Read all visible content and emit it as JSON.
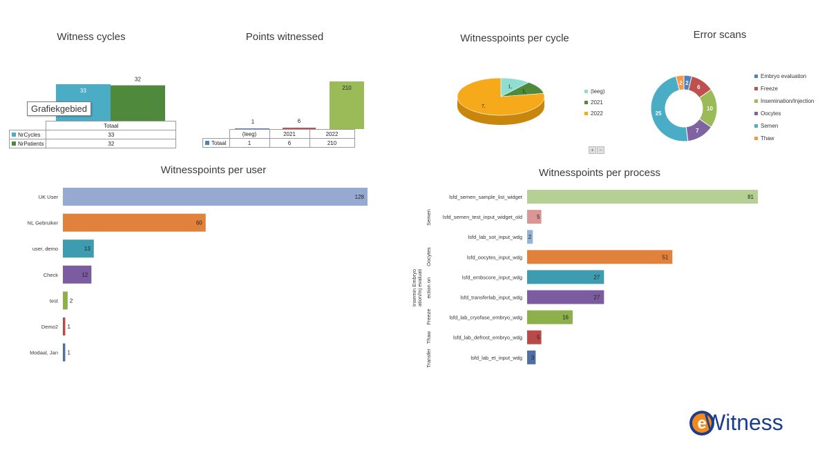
{
  "titles": {
    "cycles": "Witness cycles",
    "points": "Points witnessed",
    "per_cycle": "Witnesspoints per cycle",
    "error": "Error scans",
    "per_user": "Witnesspoints per user",
    "per_process": "Witnesspoints per process"
  },
  "tooltip": "Grafiekgebied",
  "cycles_table": {
    "header": "Totaal",
    "rows": [
      {
        "label": "NrCycles",
        "value": "33"
      },
      {
        "label": "NrPatients",
        "value": "32"
      }
    ]
  },
  "points_table": {
    "header": [
      "(leeg)",
      "2021",
      "2022"
    ],
    "row_label": "Totaal",
    "values": [
      "1",
      "6",
      "210"
    ]
  },
  "pie_legend": [
    "(leeg)",
    "2021",
    "2022"
  ],
  "donut_legend": [
    "Embryo evaluation",
    "Freeze",
    "Insemination/Injection",
    "Oocytes",
    "Semen",
    "Thaw"
  ],
  "zoom": {
    "plus": "+",
    "minus": "−"
  },
  "logo": {
    "letter": "e",
    "text": "Witness"
  },
  "chart_data": [
    {
      "type": "bar",
      "title": "Witness cycles",
      "categories": [
        "Totaal"
      ],
      "series": [
        {
          "name": "NrCycles",
          "values": [
            33
          ]
        },
        {
          "name": "NrPatients",
          "values": [
            32
          ]
        }
      ],
      "colors": [
        "#4bacc6",
        "#4f8a3c"
      ]
    },
    {
      "type": "bar",
      "title": "Points witnessed",
      "categories": [
        "(leeg)",
        "2021",
        "2022"
      ],
      "series": [
        {
          "name": "Totaal",
          "values": [
            1,
            6,
            210
          ]
        }
      ],
      "colors": [
        "#4f81bd",
        "#c0504d",
        "#9bbb59"
      ]
    },
    {
      "type": "pie",
      "title": "Witnesspoints per cycle",
      "categories": [
        "(leeg)",
        "2021",
        "2022"
      ],
      "values": [
        1,
        1,
        7
      ],
      "labels": [
        "1,",
        "1,",
        "7,"
      ],
      "colors": [
        "#8fded0",
        "#4f8a3c",
        "#f5a91b"
      ]
    },
    {
      "type": "pie",
      "title": "Error scans",
      "categories": [
        "Embryo evaluation",
        "Freeze",
        "Insemination/Injection",
        "Oocytes",
        "Semen",
        "Thaw"
      ],
      "values": [
        2,
        6,
        10,
        7,
        25,
        2
      ],
      "colors": [
        "#4f81bd",
        "#c0504d",
        "#9bbb59",
        "#8064a2",
        "#4bacc6",
        "#f79646"
      ]
    },
    {
      "type": "bar",
      "title": "Witnesspoints per user",
      "categories": [
        "UK User",
        "NL Gebruiker",
        "user, demo",
        "Check",
        "test",
        "Demo2",
        "Modaal, Jan"
      ],
      "values": [
        128,
        60,
        13,
        12,
        2,
        1,
        1
      ],
      "colors": [
        "#95a9d1",
        "#e0823c",
        "#3d9cb0",
        "#7b5ca0",
        "#8eb04b",
        "#b84a47",
        "#4f6ea3"
      ]
    },
    {
      "type": "bar",
      "title": "Witnesspoints per process",
      "groups": [
        "Semen",
        "Oocytes",
        "Insemin Embryo ation/Inj evaluati ection on",
        "Freeze",
        "Thaw",
        "Transfer"
      ],
      "categories": [
        "lsfd_semen_sample_list_widget",
        "lsfd_semen_test_input_widget_old",
        "lsfd_lab_sot_input_wdg",
        "lsfd_oocytes_input_wdg",
        "lsfd_embscore_input_wdg",
        "lsfd_transferlab_input_wdg",
        "lsfd_lab_cryofase_embryo_wdg",
        "lsfd_lab_defrost_embryo_wdg",
        "lsfd_lab_et_input_wdg"
      ],
      "values": [
        81,
        5,
        2,
        51,
        27,
        27,
        16,
        5,
        3
      ],
      "colors": [
        "#b5cf95",
        "#d99694",
        "#95b3d7",
        "#e0823c",
        "#3d9cb0",
        "#7b5ca0",
        "#8eb04b",
        "#b84a47",
        "#4f6ea3"
      ]
    }
  ]
}
